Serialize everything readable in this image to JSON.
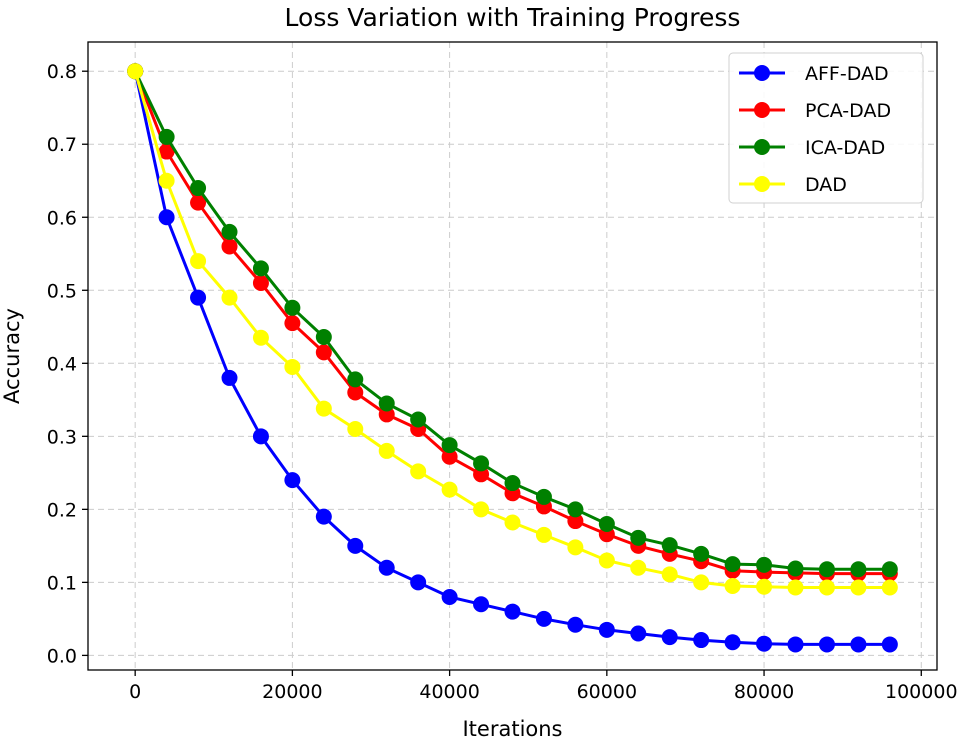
{
  "chart_data": {
    "type": "line",
    "title": "Loss Variation with Training Progress",
    "xlabel": "Iterations",
    "ylabel": "Accuracy",
    "xlim": [
      -6000,
      102000
    ],
    "ylim": [
      -0.02,
      0.84
    ],
    "xticks": [
      0,
      20000,
      40000,
      60000,
      80000,
      100000
    ],
    "yticks": [
      0.0,
      0.1,
      0.2,
      0.3,
      0.4,
      0.5,
      0.6,
      0.7,
      0.8
    ],
    "xtick_labels": [
      "0",
      "20000",
      "40000",
      "60000",
      "80000",
      "100000"
    ],
    "ytick_labels": [
      "0.0",
      "0.1",
      "0.2",
      "0.3",
      "0.4",
      "0.5",
      "0.6",
      "0.7",
      "0.8"
    ],
    "grid": true,
    "legend_position": "top-right",
    "x": [
      0,
      4000,
      8000,
      12000,
      16000,
      20000,
      24000,
      28000,
      32000,
      36000,
      40000,
      44000,
      48000,
      52000,
      56000,
      60000,
      64000,
      68000,
      72000,
      76000,
      80000,
      84000,
      88000,
      92000,
      96000
    ],
    "series": [
      {
        "name": "AFF-DAD",
        "color": "#0000ff",
        "values": [
          0.8,
          0.6,
          0.49,
          0.38,
          0.3,
          0.24,
          0.19,
          0.15,
          0.12,
          0.1,
          0.08,
          0.07,
          0.06,
          0.05,
          0.042,
          0.035,
          0.03,
          0.025,
          0.021,
          0.018,
          0.016,
          0.015,
          0.015,
          0.015,
          0.015
        ]
      },
      {
        "name": "PCA-DAD",
        "color": "#ff0000",
        "values": [
          0.8,
          0.69,
          0.62,
          0.56,
          0.51,
          0.455,
          0.415,
          0.36,
          0.33,
          0.31,
          0.272,
          0.248,
          0.222,
          0.204,
          0.184,
          0.166,
          0.15,
          0.139,
          0.129,
          0.116,
          0.114,
          0.113,
          0.112,
          0.112,
          0.112
        ]
      },
      {
        "name": "ICA-DAD",
        "color": "#008000",
        "values": [
          0.8,
          0.71,
          0.64,
          0.58,
          0.53,
          0.476,
          0.436,
          0.378,
          0.345,
          0.323,
          0.288,
          0.263,
          0.236,
          0.217,
          0.2,
          0.18,
          0.161,
          0.151,
          0.139,
          0.125,
          0.124,
          0.119,
          0.118,
          0.118,
          0.118
        ]
      },
      {
        "name": "DAD",
        "color": "#ffff00",
        "values": [
          0.8,
          0.65,
          0.54,
          0.49,
          0.435,
          0.395,
          0.338,
          0.31,
          0.28,
          0.252,
          0.227,
          0.2,
          0.182,
          0.165,
          0.148,
          0.13,
          0.12,
          0.111,
          0.1,
          0.095,
          0.094,
          0.093,
          0.093,
          0.093,
          0.093
        ]
      }
    ]
  }
}
